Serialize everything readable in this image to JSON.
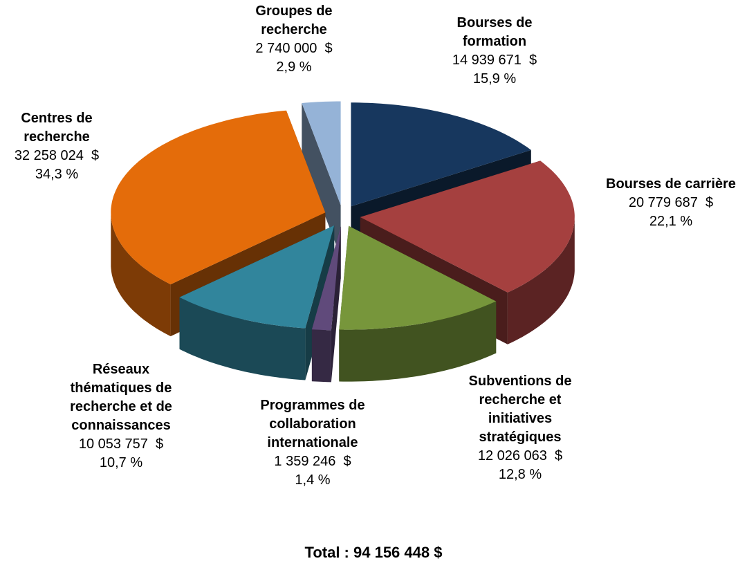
{
  "chart_data": {
    "type": "pie3d",
    "categories": [
      "Bourses de formation",
      "Bourses de carrière",
      "Subventions de recherche et initiatives stratégiques",
      "Programmes de collaboration internationale",
      "Réseaux thématiques de recherche et de connaissances",
      "Centres de recherche",
      "Groupes de recherche"
    ],
    "values": [
      14939671,
      20779687,
      12026063,
      1359246,
      10053757,
      32258024,
      2740000
    ],
    "value_labels": [
      "14 939 671  $",
      "20 779 687  $",
      "12 026 063  $",
      "1 359 246  $",
      "10 053 757  $",
      "32 258 024  $",
      "2 740 000  $"
    ],
    "percentages": [
      15.9,
      22.1,
      12.8,
      1.4,
      10.7,
      34.3,
      2.9
    ],
    "percentage_labels": [
      "15,9 %",
      "22,1 %",
      "12,8 %",
      "1,4 %",
      "10,7 %",
      "34,3 %",
      "2,9 %"
    ],
    "colors": [
      "#17375e",
      "#a5403f",
      "#77963b",
      "#604a7b",
      "#31859c",
      "#e46c0a",
      "#95b3d7"
    ],
    "total": "Total : 94 156 448 $"
  }
}
